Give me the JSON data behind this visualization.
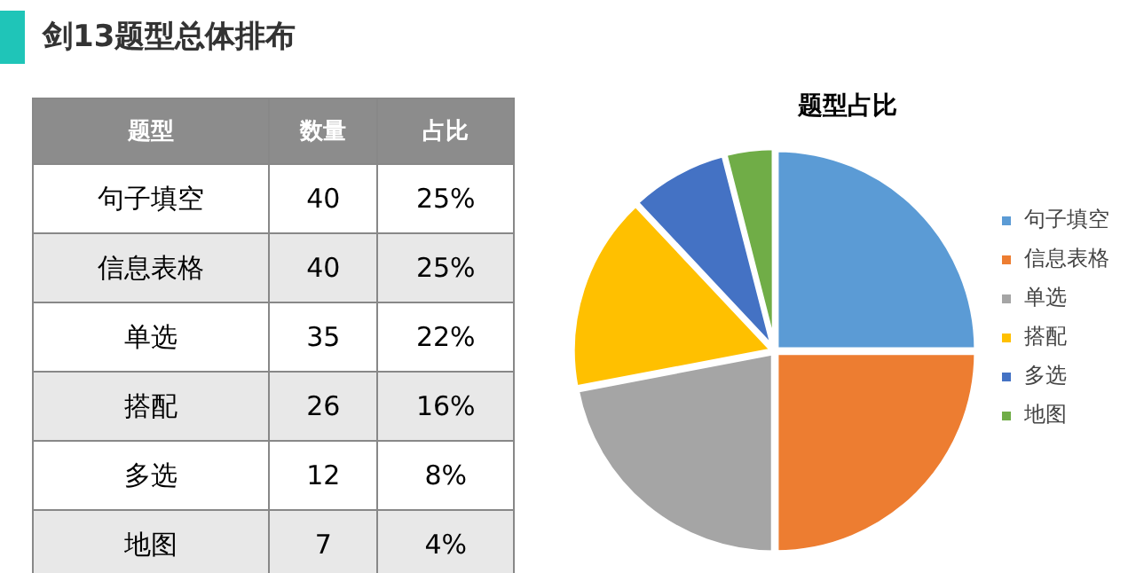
{
  "chart_data": [
    {
      "type": "other",
      "title": "剑13题型总体排布",
      "annotations": [
        "题型",
        "数量",
        "占比",
        "句子填空",
        "40",
        "25%",
        "信息表格",
        "40",
        "25%",
        "单选",
        "35",
        "22%",
        "搭配",
        "26",
        "16%",
        "多选",
        "12",
        "8%",
        "地图",
        "7",
        "4%"
      ]
    },
    {
      "type": "pie",
      "title": "题型占比",
      "categories": [
        "句子填空",
        "信息表格",
        "单选",
        "搭配",
        "多选",
        "地图"
      ],
      "values": [
        25,
        25,
        22,
        16,
        8,
        4
      ],
      "colors": [
        "#5b9bd5",
        "#ed7d31",
        "#a5a5a5",
        "#ffc000",
        "#4472c4",
        "#70ad47"
      ],
      "legend": "right"
    }
  ]
}
